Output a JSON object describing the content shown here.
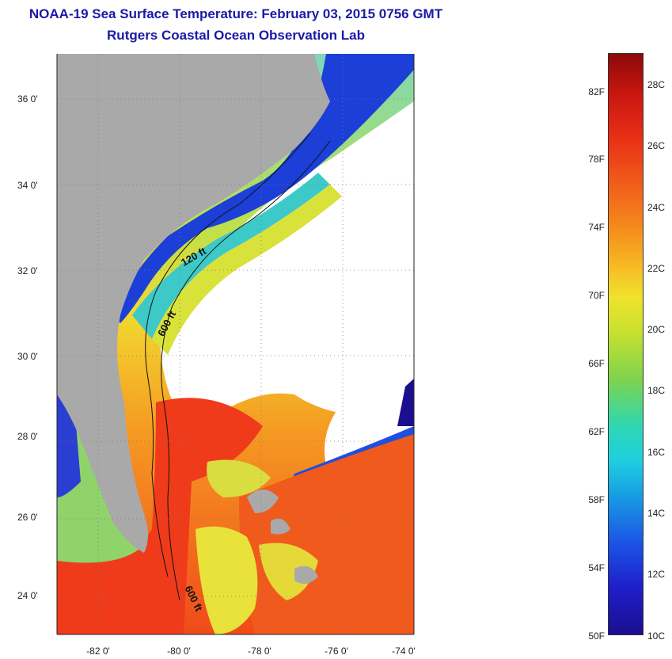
{
  "header": {
    "title": "NOAA-19 Sea Surface Temperature:  February 03, 2015 0756 GMT",
    "subtitle": "Rutgers Coastal Ocean Observation Lab"
  },
  "map": {
    "latitude_labels": [
      "36 0'",
      "34 0'",
      "32 0'",
      "30 0'",
      "28 0'",
      "26 0'",
      "24 0'"
    ],
    "longitude_labels": [
      "-82 0'",
      "-80 0'",
      "-78 0'",
      "-76 0'",
      "-74 0'"
    ],
    "contour_labels": [
      "120 ft",
      "600 ft",
      "600 ft"
    ],
    "land_color": "#a9a9a9",
    "cloud_color": "#ffffff"
  },
  "colorbar": {
    "fahrenheit_labels": [
      "82F",
      "78F",
      "74F",
      "70F",
      "66F",
      "62F",
      "58F",
      "54F",
      "50F"
    ],
    "celsius_labels": [
      "28C",
      "26C",
      "24C",
      "22C",
      "20C",
      "18C",
      "16C",
      "14C",
      "12C",
      "10C"
    ],
    "range_c": [
      10,
      29
    ],
    "colors": [
      "#1a0f8f",
      "#1b56e6",
      "#1fcfe0",
      "#7fd34e",
      "#f0e22c",
      "#f58b1d",
      "#e82d16",
      "#8b0a0a"
    ]
  }
}
